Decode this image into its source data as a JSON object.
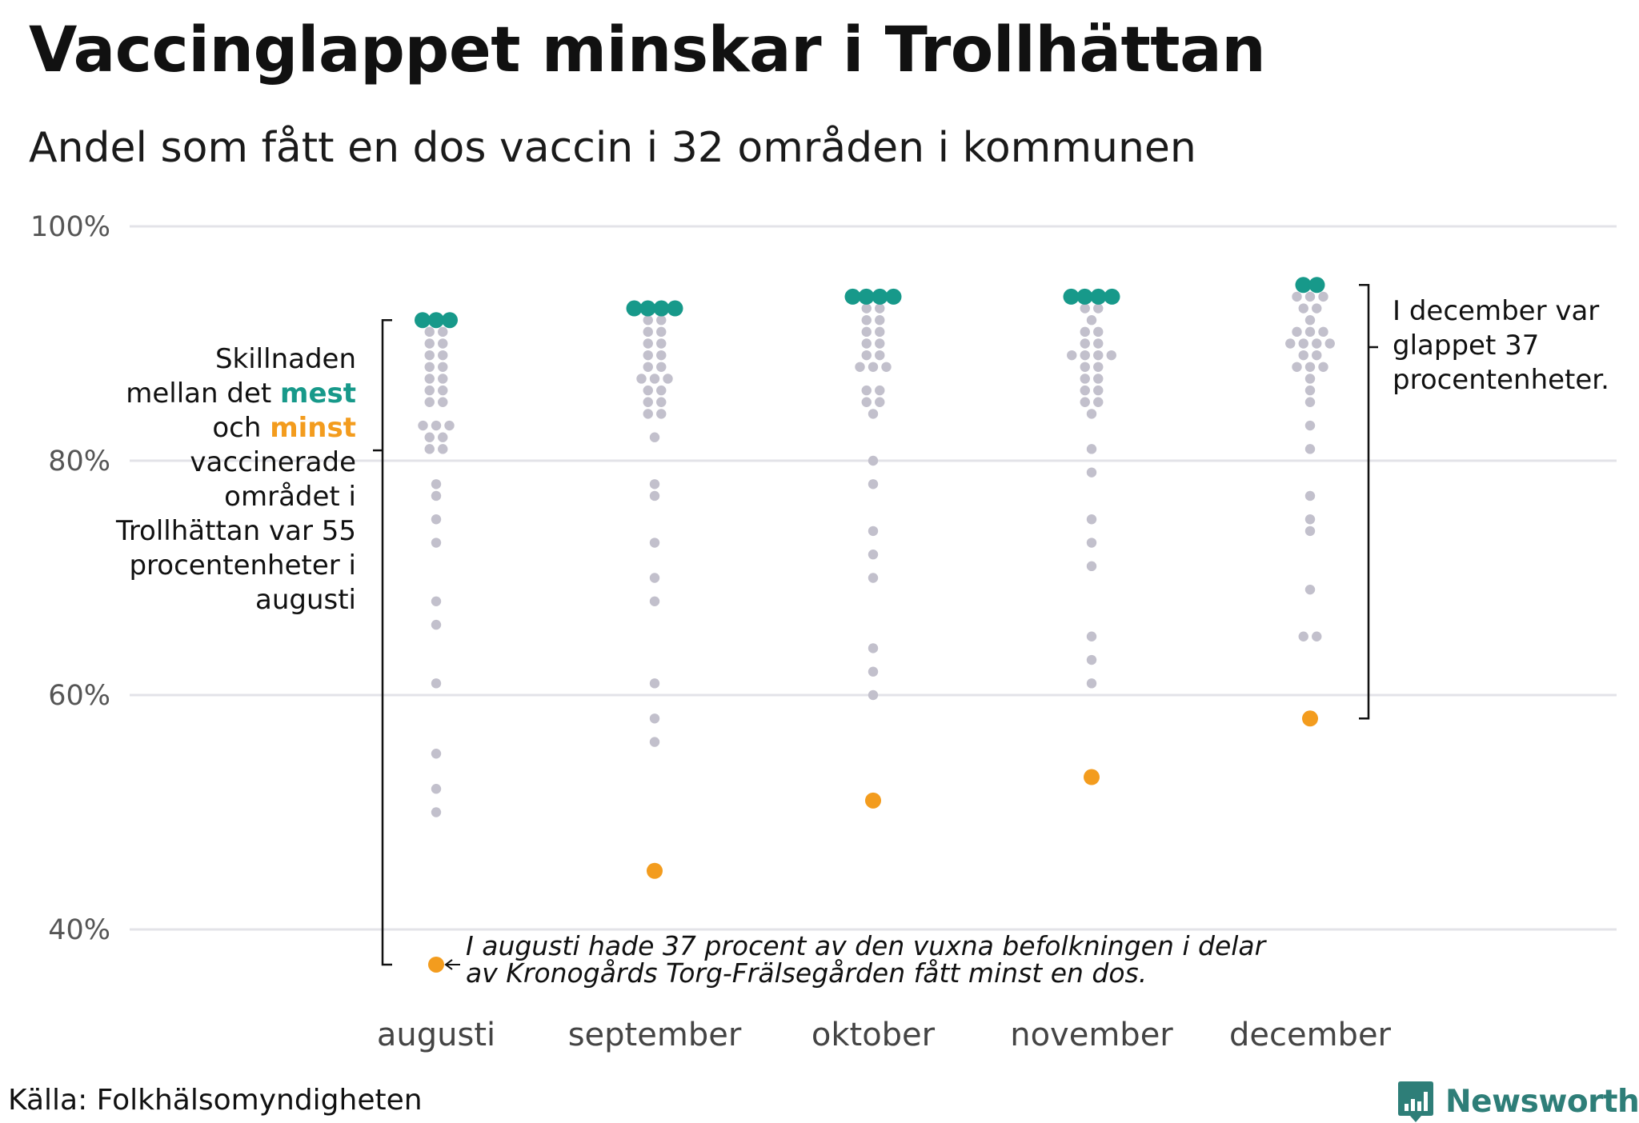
{
  "title": "Vaccinglappet minskar i Trollhättan",
  "subtitle": "Andel som fått en dos vaccin i 32 områden i kommunen",
  "source": "Källa: Folkhälsomyndigheten",
  "logo": {
    "text": "Newsworthy",
    "icon": "bar-chart-speech-bubble-icon"
  },
  "colors": {
    "most": "#17998a",
    "least": "#f39c1e",
    "other": "#c2c0cc",
    "grid": "#e3e3e8"
  },
  "annotations": {
    "left": {
      "line1": "Skillnaden",
      "line2_pre": "mellan det ",
      "most": "mest",
      "line3_pre": "och ",
      "least": "minst",
      "rest": "vaccinerade området i Trollhättan var 55  procentenheter i augusti"
    },
    "right": "I december var glappet 37 procentenheter.",
    "bottom": "I augusti hade 37 procent av den vuxna befolkningen i delar av Kronogårds Torg-Frälsegården fått minst en dos."
  },
  "chart_data": {
    "type": "scatter",
    "categories": [
      "augusti",
      "september",
      "oktober",
      "november",
      "december"
    ],
    "y_ticks": [
      {
        "value": 40,
        "label": "40%"
      },
      {
        "value": 60,
        "label": "60%"
      },
      {
        "value": 80,
        "label": "80%"
      },
      {
        "value": 100,
        "label": "100%"
      }
    ],
    "ylim": [
      34,
      101
    ],
    "grid": true,
    "series": [
      {
        "month": "augusti",
        "max": 92,
        "min": 37,
        "max_count": 3,
        "others": [
          91,
          91,
          90,
          90,
          89,
          89,
          88,
          88,
          87,
          87,
          86,
          86,
          85,
          85,
          83,
          83,
          83,
          82,
          82,
          81,
          81,
          78,
          77,
          75,
          73,
          68,
          66,
          61,
          55,
          52,
          50
        ]
      },
      {
        "month": "september",
        "max": 93,
        "min": 45,
        "max_count": 4,
        "others": [
          92,
          92,
          91,
          91,
          90,
          90,
          89,
          89,
          88,
          88,
          87,
          87,
          87,
          86,
          86,
          85,
          85,
          84,
          84,
          82,
          78,
          77,
          73,
          70,
          68,
          61,
          58,
          56
        ]
      },
      {
        "month": "oktober",
        "max": 94,
        "min": 51,
        "max_count": 4,
        "others": [
          93,
          93,
          92,
          92,
          91,
          91,
          90,
          90,
          89,
          89,
          88,
          88,
          88,
          86,
          86,
          85,
          85,
          84,
          80,
          78,
          74,
          72,
          70,
          64,
          62,
          60
        ]
      },
      {
        "month": "november",
        "max": 94,
        "min": 53,
        "max_count": 4,
        "others": [
          93,
          93,
          92,
          91,
          91,
          90,
          90,
          89,
          89,
          89,
          89,
          88,
          88,
          87,
          87,
          86,
          86,
          85,
          85,
          84,
          81,
          79,
          75,
          73,
          71,
          65,
          63,
          61
        ]
      },
      {
        "month": "december",
        "max": 95,
        "min": 58,
        "max_count": 2,
        "others": [
          94,
          94,
          94,
          93,
          93,
          92,
          91,
          91,
          91,
          90,
          90,
          90,
          90,
          89,
          89,
          88,
          88,
          88,
          87,
          86,
          85,
          83,
          81,
          77,
          75,
          74,
          69,
          65,
          65
        ]
      }
    ]
  }
}
